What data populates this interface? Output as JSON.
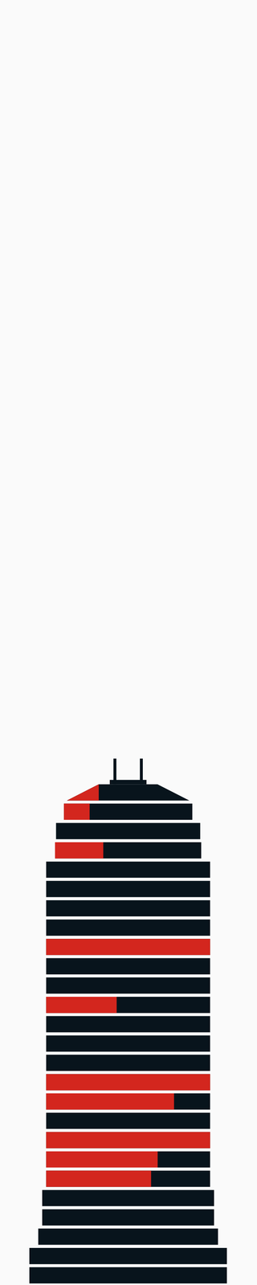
{
  "chart_data": {
    "type": "bar",
    "orientation": "horizontal",
    "values": [
      26,
      20,
      0,
      33,
      0,
      0,
      0,
      0,
      100,
      0,
      0,
      43,
      0,
      0,
      0,
      100,
      78,
      0,
      100,
      68,
      64,
      0,
      0,
      0,
      0,
      0
    ],
    "color": "#d3261e",
    "xlim": [
      0,
      100
    ],
    "tick_labels": false,
    "grid": false
  }
}
